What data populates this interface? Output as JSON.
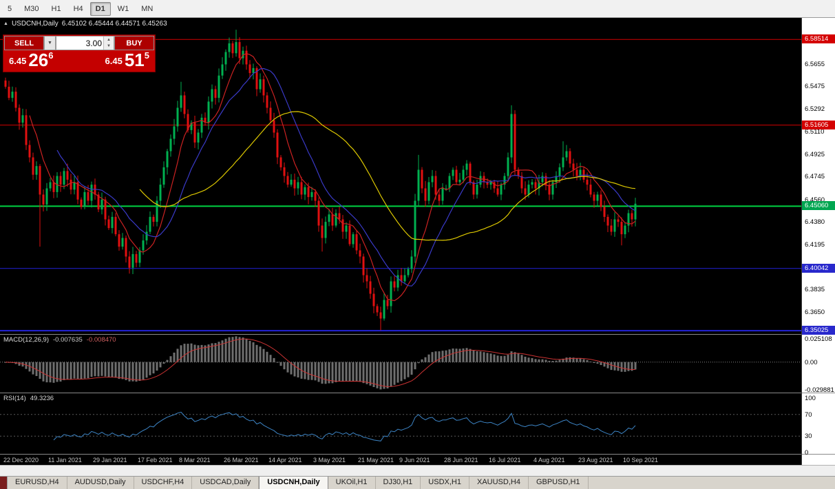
{
  "toolbar": {
    "timeframes": [
      {
        "label": "5",
        "active": false
      },
      {
        "label": "M30",
        "active": false
      },
      {
        "label": "H1",
        "active": false
      },
      {
        "label": "H4",
        "active": false
      },
      {
        "label": "D1",
        "active": true
      },
      {
        "label": "W1",
        "active": false
      },
      {
        "label": "MN",
        "active": false
      }
    ]
  },
  "chart_header": {
    "collapse_icon": "▲",
    "symbol_title": "USDCNH,Daily",
    "ohlc": "6.45102 6.45444 6.44571 6.45263"
  },
  "trade_panel": {
    "sell_label": "SELL",
    "buy_label": "BUY",
    "volume": "3.00",
    "sell_price": {
      "base": "6.45",
      "big": "26",
      "sup": "6"
    },
    "buy_price": {
      "base": "6.45",
      "big": "51",
      "sup": "5"
    }
  },
  "price_axis": {
    "ticks": [
      "6.5655",
      "6.5475",
      "6.5292",
      "6.5110",
      "6.4925",
      "6.4745",
      "6.4560",
      "6.4380",
      "6.4195",
      "6.3835",
      "6.3650"
    ],
    "badges": [
      {
        "text": "6.58514",
        "price": 6.58514,
        "color": "#d40000"
      },
      {
        "text": "6.51605",
        "price": 6.51605,
        "color": "#d40000"
      },
      {
        "text": "6.45060",
        "price": 6.4506,
        "color": "#00a651"
      },
      {
        "text": "6.40042",
        "price": 6.40042,
        "color": "#2828cc"
      },
      {
        "text": "6.35025",
        "price": 6.35025,
        "color": "#2828cc"
      }
    ]
  },
  "macd_panel": {
    "name": "MACD(12,26,9)",
    "main_value": "-0.007635",
    "signal_value": "-0.008470",
    "axis": [
      {
        "text": "0.025108",
        "value": 0.025108
      },
      {
        "text": "0.00",
        "value": 0
      },
      {
        "text": "-0.029881",
        "value": -0.029881
      }
    ]
  },
  "rsi_panel": {
    "name": "RSI(14)",
    "value": "49.3236",
    "axis": [
      {
        "text": "100",
        "value": 100
      },
      {
        "text": "70",
        "value": 70
      },
      {
        "text": "30",
        "value": 30
      },
      {
        "text": "0",
        "value": 0
      }
    ]
  },
  "time_axis": [
    {
      "label": "22 Dec 2020",
      "index": 0
    },
    {
      "label": "11 Jan 2021",
      "index": 13
    },
    {
      "label": "29 Jan 2021",
      "index": 26
    },
    {
      "label": "17 Feb 2021",
      "index": 39
    },
    {
      "label": "8 Mar 2021",
      "index": 51
    },
    {
      "label": "26 Mar 2021",
      "index": 64
    },
    {
      "label": "14 Apr 2021",
      "index": 77
    },
    {
      "label": "3 May 2021",
      "index": 90
    },
    {
      "label": "21 May 2021",
      "index": 103
    },
    {
      "label": "9 Jun 2021",
      "index": 115
    },
    {
      "label": "28 Jun 2021",
      "index": 128
    },
    {
      "label": "16 Jul 2021",
      "index": 141
    },
    {
      "label": "4 Aug 2021",
      "index": 154
    },
    {
      "label": "23 Aug 2021",
      "index": 167
    },
    {
      "label": "10 Sep 2021",
      "index": 180
    }
  ],
  "tab_bar": {
    "tabs": [
      {
        "label": "EURUSD,H4",
        "active": false
      },
      {
        "label": "AUDUSD,Daily",
        "active": false
      },
      {
        "label": "USDCHF,H4",
        "active": false
      },
      {
        "label": "USDCAD,Daily",
        "active": false
      },
      {
        "label": "USDCNH,Daily",
        "active": true
      },
      {
        "label": "UKOil,H1",
        "active": false
      },
      {
        "label": "DJ30,H1",
        "active": false
      },
      {
        "label": "USDX,H1",
        "active": false
      },
      {
        "label": "XAUUSD,H4",
        "active": false
      },
      {
        "label": "GBPUSD,H1",
        "active": false
      }
    ]
  },
  "chart_data": {
    "type": "candlestick",
    "symbol": "USDCNH",
    "timeframe": "Daily",
    "price_range": {
      "top": 6.6025,
      "bottom": 6.3475
    },
    "first_open": 6.552,
    "up_color": "#00b050",
    "down_color": "#e01010",
    "closes": [
      6.547,
      6.538,
      6.543,
      6.53,
      6.518,
      6.524,
      6.5,
      6.49,
      6.476,
      6.483,
      6.46,
      6.452,
      6.465,
      6.47,
      6.462,
      6.475,
      6.468,
      6.479,
      6.472,
      6.464,
      6.47,
      6.456,
      6.45,
      6.462,
      6.455,
      6.468,
      6.46,
      6.448,
      6.456,
      6.44,
      6.433,
      6.442,
      6.428,
      6.418,
      6.425,
      6.41,
      6.401,
      6.412,
      6.405,
      6.415,
      6.423,
      6.43,
      6.442,
      6.438,
      6.455,
      6.468,
      6.482,
      6.495,
      6.505,
      6.515,
      6.53,
      6.54,
      6.525,
      6.512,
      6.518,
      6.502,
      6.51,
      6.522,
      6.518,
      6.535,
      6.545,
      6.538,
      6.556,
      6.565,
      6.575,
      6.582,
      6.574,
      6.583,
      6.57,
      6.576,
      6.565,
      6.558,
      6.562,
      6.545,
      6.553,
      6.54,
      6.53,
      6.52,
      6.51,
      6.49,
      6.482,
      6.475,
      6.468,
      6.472,
      6.465,
      6.47,
      6.46,
      6.466,
      6.458,
      6.462,
      6.455,
      6.435,
      6.425,
      6.438,
      6.444,
      6.435,
      6.445,
      6.44,
      6.43,
      6.435,
      6.42,
      6.428,
      6.415,
      6.41,
      6.395,
      6.39,
      6.38,
      6.37,
      6.365,
      6.36,
      6.375,
      6.37,
      6.39,
      6.385,
      6.395,
      6.39,
      6.395,
      6.4,
      6.41,
      6.455,
      6.48,
      6.465,
      6.455,
      6.47,
      6.475,
      6.46,
      6.455,
      6.465,
      6.465,
      6.475,
      6.48,
      6.47,
      6.472,
      6.48,
      6.485,
      6.47,
      6.46,
      6.468,
      6.475,
      6.47,
      6.468,
      6.47,
      6.465,
      6.46,
      6.468,
      6.475,
      6.49,
      6.525,
      6.48,
      6.475,
      6.465,
      6.46,
      6.468,
      6.47,
      6.465,
      6.47,
      6.475,
      6.468,
      6.46,
      6.47,
      6.475,
      6.482,
      6.49,
      6.495,
      6.485,
      6.48,
      6.475,
      6.48,
      6.472,
      6.468,
      6.46,
      6.455,
      6.46,
      6.45,
      6.442,
      6.435,
      6.43,
      6.44,
      6.438,
      6.428,
      6.435,
      6.445,
      6.44,
      6.4526
    ],
    "wick_overrides": {
      "10": {
        "low": 6.418
      },
      "51": {
        "high": 6.551
      },
      "67": {
        "high": 6.593
      },
      "92": {
        "low": 6.414
      },
      "109": {
        "low": 6.3505
      },
      "120": {
        "high": 6.492
      },
      "147": {
        "high": 6.532
      },
      "162": {
        "high": 6.503
      },
      "179": {
        "low": 6.419
      }
    },
    "hlines": [
      {
        "price": 6.58514,
        "color": "#d40000",
        "width": 1
      },
      {
        "price": 6.51605,
        "color": "#d40000",
        "width": 1
      },
      {
        "price": 6.4506,
        "color": "#00d443",
        "width": 2
      },
      {
        "price": 6.40042,
        "color": "#2323d9",
        "width": 1
      },
      {
        "price": 6.35025,
        "color": "#2323d9",
        "width": 2
      }
    ],
    "moving_averages": [
      {
        "period": 8,
        "color": "#cc2222"
      },
      {
        "period": 16,
        "color": "#3a3ac8"
      },
      {
        "period": 40,
        "color": "#ddc800"
      }
    ],
    "macd": {
      "fast": 12,
      "slow": 26,
      "signal": 9,
      "range": [
        -0.029881,
        0.025108
      ]
    },
    "rsi": {
      "period": 14,
      "range": [
        0,
        100
      ],
      "levels": [
        70,
        30
      ]
    }
  }
}
